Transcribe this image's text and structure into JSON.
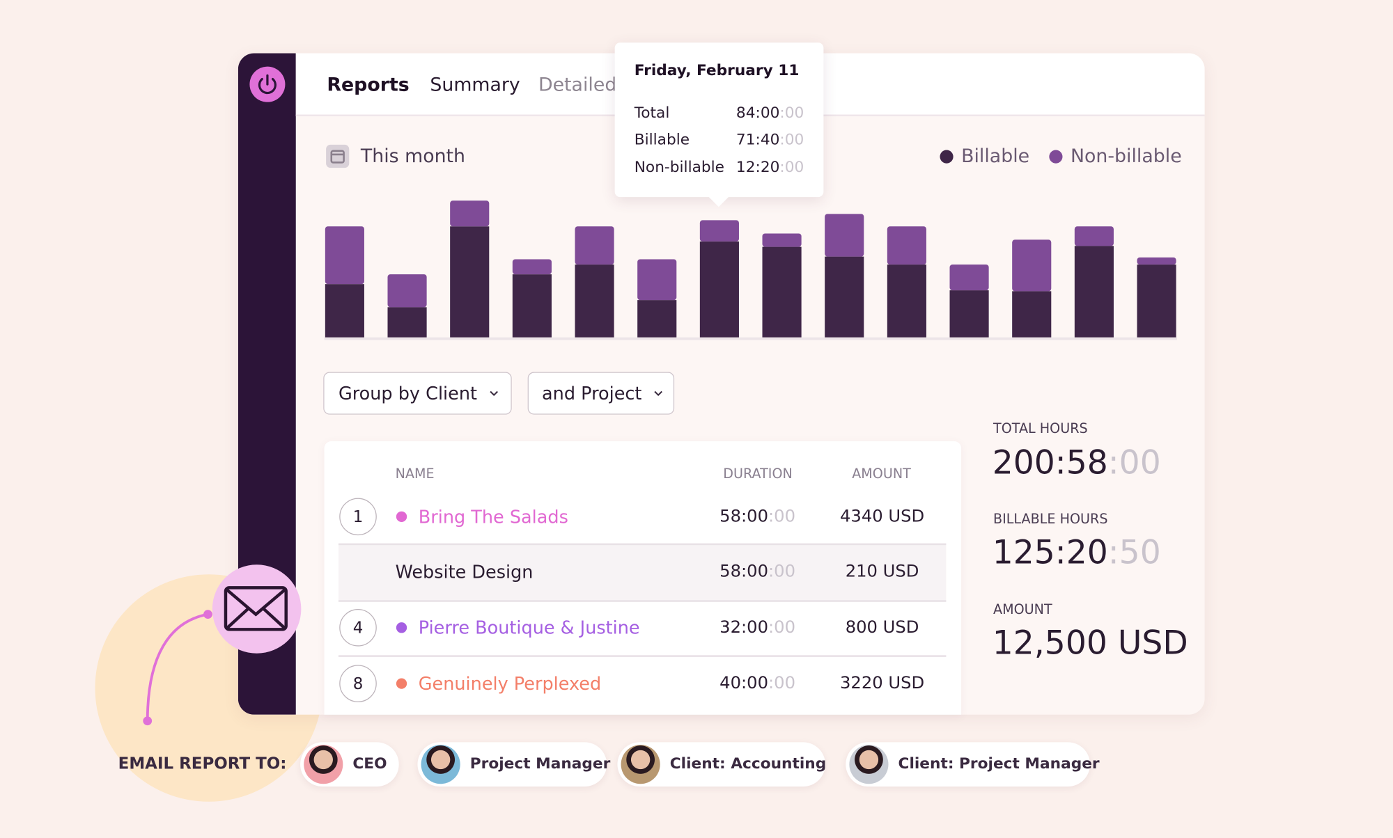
{
  "nav": {
    "tabs": [
      "Reports",
      "Summary",
      "Detailed"
    ]
  },
  "tooltip": {
    "title": "Friday, February 11",
    "rows": [
      {
        "label": "Total",
        "time": "84:00",
        "seconds": ":00"
      },
      {
        "label": "Billable",
        "time": "71:40",
        "seconds": ":00"
      },
      {
        "label": "Non-billable",
        "time": "12:20",
        "seconds": ":00"
      }
    ]
  },
  "period": "This month",
  "chart_data": {
    "type": "bar",
    "stacked": true,
    "ylim": [
      0,
      160
    ],
    "highlight": 6,
    "series": [
      {
        "name": "Billable",
        "color": "#3f2648",
        "values": [
          60,
          34,
          125,
          71,
          82,
          42,
          108,
          102,
          91,
          82,
          53,
          52,
          103,
          82
        ]
      },
      {
        "name": "Non-billable",
        "color": "#7f4b97",
        "values": [
          65,
          37,
          29,
          17,
          43,
          46,
          24,
          15,
          48,
          43,
          29,
          58,
          22,
          8
        ]
      }
    ]
  },
  "filters": [
    "Group by Client",
    "and Project"
  ],
  "table": {
    "headers": [
      "NAME",
      "DURATION",
      "AMOUNT"
    ],
    "rows": [
      {
        "number": 1,
        "name": "Bring The Salads",
        "color": "#e168d2",
        "duration": "58:00",
        "seconds": ":00",
        "amount": "4340 USD"
      },
      {
        "name": "Website Design",
        "duration": "58:00",
        "seconds": ":00",
        "amount": "210 USD"
      },
      {
        "number": 4,
        "name": "Pierre Boutique & Justine",
        "color": "#a55fe2",
        "duration": "32:00",
        "seconds": ":00",
        "amount": "800 USD"
      },
      {
        "number": 8,
        "name": "Genuinely Perplexed",
        "color": "#f37f69",
        "duration": "40:00",
        "seconds": ":00",
        "amount": "3220 USD"
      }
    ]
  },
  "stats": [
    {
      "label": "TOTAL HOURS",
      "value": "200:58",
      "seconds": ":00"
    },
    {
      "label": "BILLABLE HOURS",
      "value": "125:20",
      "seconds": ":50"
    },
    {
      "label": "AMOUNT",
      "value": "12,500 USD"
    }
  ],
  "email": {
    "label": "EMAIL REPORT TO:",
    "recipients": [
      "CEO",
      "Project Manager",
      "Client: Accounting",
      "Client: Project Manager"
    ]
  }
}
